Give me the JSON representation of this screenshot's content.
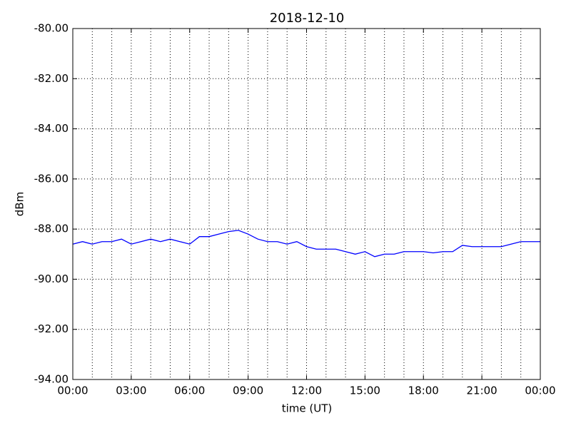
{
  "chart_data": {
    "type": "line",
    "title": "2018-12-10",
    "xlabel": "time (UT)",
    "ylabel": "dBm",
    "x": [
      0,
      0.5,
      1,
      1.5,
      2,
      2.5,
      3,
      3.5,
      4,
      4.5,
      5,
      5.5,
      6,
      6.5,
      7,
      7.5,
      8,
      8.5,
      9,
      9.5,
      10,
      10.5,
      11,
      11.5,
      12,
      12.5,
      13,
      13.5,
      14,
      14.5,
      15,
      15.5,
      16,
      16.5,
      17,
      17.5,
      18,
      18.5,
      19,
      19.5,
      20,
      20.5,
      21,
      21.5,
      22,
      22.5,
      23,
      23.5,
      24
    ],
    "series": [
      {
        "name": "dBm",
        "color": "#0000ff",
        "values": [
          -88.6,
          -88.5,
          -88.6,
          -88.5,
          -88.5,
          -88.4,
          -88.6,
          -88.5,
          -88.4,
          -88.5,
          -88.4,
          -88.5,
          -88.6,
          -88.3,
          -88.3,
          -88.2,
          -88.1,
          -88.05,
          -88.2,
          -88.4,
          -88.5,
          -88.5,
          -88.6,
          -88.5,
          -88.7,
          -88.8,
          -88.8,
          -88.8,
          -88.9,
          -89.0,
          -88.9,
          -89.1,
          -89.0,
          -89.0,
          -88.9,
          -88.9,
          -88.9,
          -88.95,
          -88.9,
          -88.9,
          -88.65,
          -88.7,
          -88.7,
          -88.7,
          -88.7,
          -88.6,
          -88.5,
          -88.5,
          -88.5
        ]
      }
    ],
    "xlim": [
      0,
      24
    ],
    "xticks": [
      {
        "value": 0,
        "label": "00:00"
      },
      {
        "value": 3,
        "label": "03:00"
      },
      {
        "value": 6,
        "label": "06:00"
      },
      {
        "value": 9,
        "label": "09:00"
      },
      {
        "value": 12,
        "label": "12:00"
      },
      {
        "value": 15,
        "label": "15:00"
      },
      {
        "value": 18,
        "label": "18:00"
      },
      {
        "value": 21,
        "label": "21:00"
      },
      {
        "value": 24,
        "label": "00:00"
      }
    ],
    "xminorticks": [
      0,
      1,
      2,
      3,
      4,
      5,
      6,
      7,
      8,
      9,
      10,
      11,
      12,
      13,
      14,
      15,
      16,
      17,
      18,
      19,
      20,
      21,
      22,
      23,
      24
    ],
    "ylim": [
      -94,
      -80
    ],
    "yticks": [
      {
        "value": -94,
        "label": "-94.00"
      },
      {
        "value": -92,
        "label": "-92.00"
      },
      {
        "value": -90,
        "label": "-90.00"
      },
      {
        "value": -88,
        "label": "-88.00"
      },
      {
        "value": -86,
        "label": "-86.00"
      },
      {
        "value": -84,
        "label": "-84.00"
      },
      {
        "value": -82,
        "label": "-82.00"
      },
      {
        "value": -80,
        "label": "-80.00"
      }
    ],
    "grid": true
  }
}
